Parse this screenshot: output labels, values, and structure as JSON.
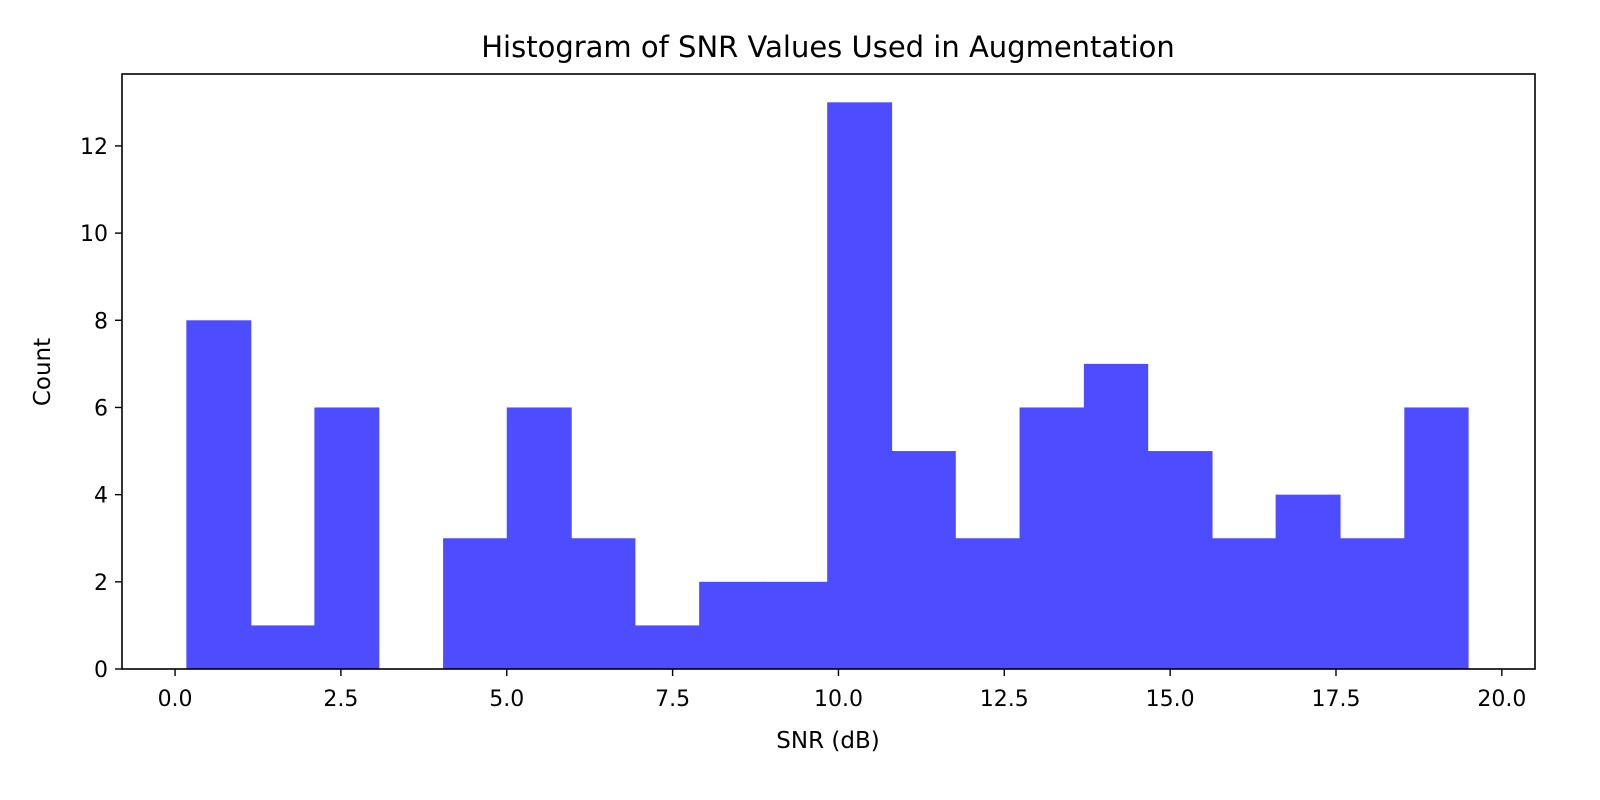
{
  "chart_data": {
    "type": "bar",
    "subtype": "histogram",
    "title": "Histogram of SNR Values Used in Augmentation",
    "xlabel": "SNR (dB)",
    "ylabel": "Count",
    "bin_edges": [
      0.17,
      1.14,
      2.1,
      3.07,
      4.04,
      5.0,
      5.97,
      6.93,
      7.9,
      8.87,
      9.83,
      10.8,
      11.76,
      12.73,
      13.7,
      14.66,
      15.63,
      16.59,
      17.56,
      18.53,
      19.49
    ],
    "counts": [
      8,
      1,
      6,
      0,
      3,
      6,
      3,
      1,
      2,
      2,
      13,
      5,
      3,
      6,
      7,
      5,
      3,
      4,
      3,
      6
    ],
    "xlim": [
      -0.8,
      20.5
    ],
    "ylim": [
      0,
      13.65
    ],
    "xticks": [
      0.0,
      2.5,
      5.0,
      7.5,
      10.0,
      12.5,
      15.0,
      17.5,
      20.0
    ],
    "xtick_labels": [
      "0.0",
      "2.5",
      "5.0",
      "7.5",
      "10.0",
      "12.5",
      "15.0",
      "17.5",
      "20.0"
    ],
    "yticks": [
      0,
      2,
      4,
      6,
      8,
      10,
      12
    ],
    "ytick_labels": [
      "0",
      "2",
      "4",
      "6",
      "8",
      "10",
      "12"
    ],
    "bar_color": "#4d4dff",
    "grid": false,
    "legend": "none"
  }
}
